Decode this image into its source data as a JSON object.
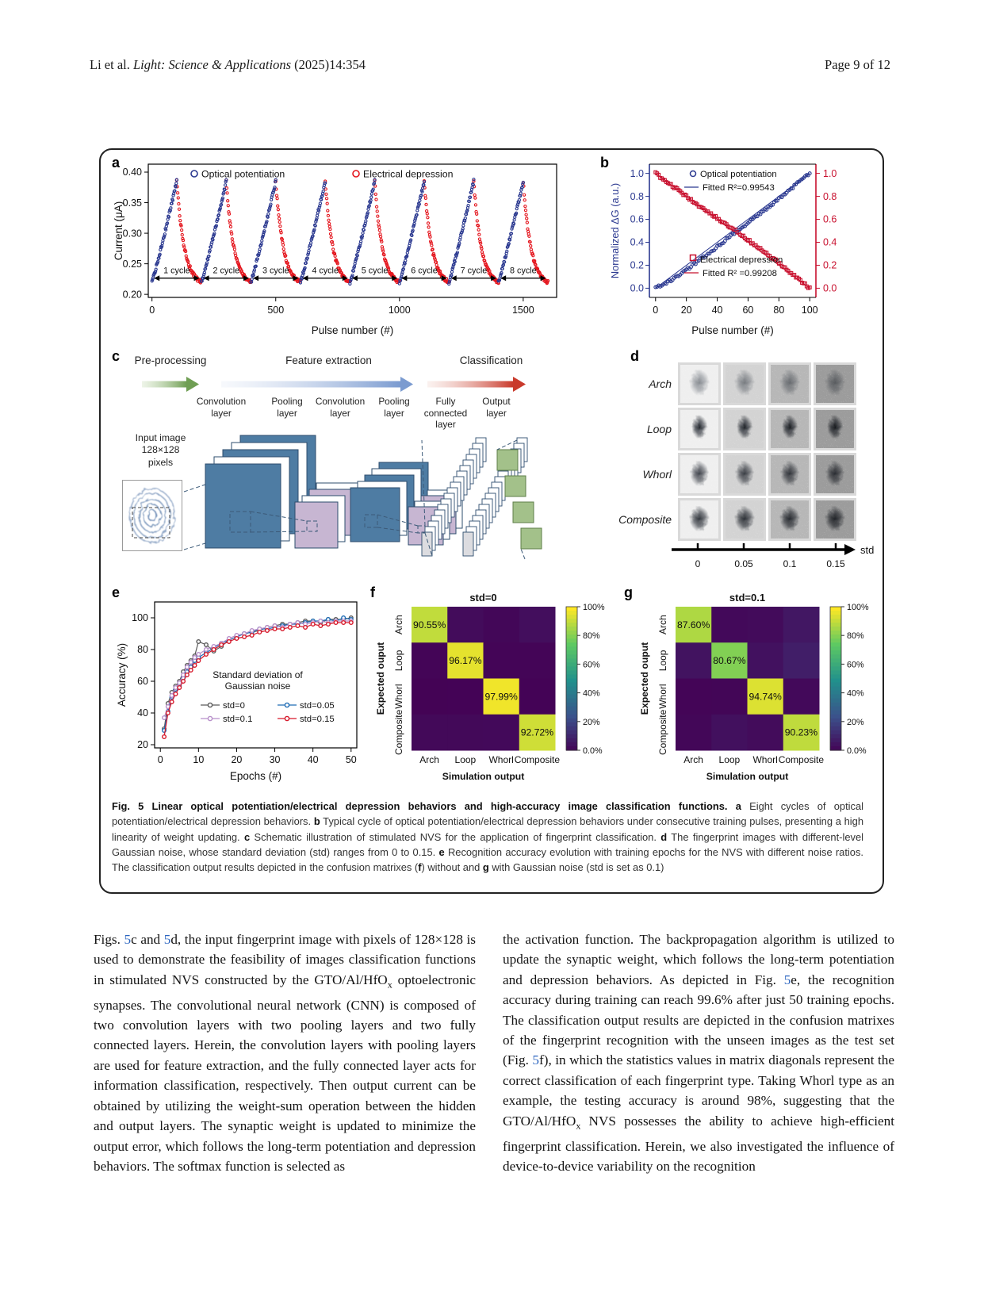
{
  "page": {
    "header": {
      "authors": "Li et al. ",
      "journal": "Light: Science & Applications",
      "citation": " (2025)14:354",
      "page_info": "Page 9 of 12"
    },
    "caption_parts": [
      {
        "t": "Fig. 5 Linear optical potentiation/electrical depression behaviors and high-accuracy image classification functions.",
        "b": 1
      },
      {
        "t": " "
      },
      {
        "t": "a",
        "b": 1
      },
      {
        "t": " Eight cycles of optical potentiation/electrical depression behaviors. "
      },
      {
        "t": "b",
        "b": 1
      },
      {
        "t": " Typical cycle of optical potentiation/electrical depression behaviors under consecutive training pulses, presenting a high linearity of weight updating. "
      },
      {
        "t": "c",
        "b": 1
      },
      {
        "t": " Schematic illustration of stimulated NVS for the application of fingerprint classification. "
      },
      {
        "t": "d",
        "b": 1
      },
      {
        "t": " The fingerprint images with different-level Gaussian noise, whose standard deviation (std) ranges from 0 to 0.15. "
      },
      {
        "t": "e",
        "b": 1
      },
      {
        "t": " Recognition accuracy evolution with training epochs for the NVS with different noise ratios. The classification output results depicted in the confusion matrixes ("
      },
      {
        "t": "f",
        "b": 1
      },
      {
        "t": ") without and "
      },
      {
        "t": "g",
        "b": 1
      },
      {
        "t": " with Gaussian noise (std is set as 0.1)"
      }
    ],
    "body_left_parts": [
      {
        "t": "Figs. "
      },
      {
        "t": "5",
        "l": 1
      },
      {
        "t": "c and "
      },
      {
        "t": "5",
        "l": 1
      },
      {
        "t": "d, the input fingerprint image with pixels of 128×128 is used to demonstrate the feasibility of images classification functions in stimulated NVS constructed by the GTO/Al/HfO"
      },
      {
        "t": "x",
        "s": 1
      },
      {
        "t": " optoelectronic synapses. The convolutional neural network (CNN) is composed of two convolution layers with two pooling layers and two fully connected layers. Herein, the convolution layers with pooling layers are used for feature extraction, and the fully connected layer acts for information classification, respectively. Then output current can be obtained by utilizing the weight-sum operation between the hidden and output layers. The synaptic weight is updated to minimize the output error, which follows the long-term potentiation and depression behaviors. The softmax function is selected as"
      }
    ],
    "body_right_parts": [
      {
        "t": "the activation function. The backpropagation algorithm is utilized to update the synaptic weight, which follows the long-term potentiation and depression behaviors. As depicted in Fig. "
      },
      {
        "t": "5",
        "l": 1
      },
      {
        "t": "e, the recognition accuracy during training can reach 99.6% after just 50 training epochs. The classification output results are depicted in the confusion matrixes of the fingerprint recognition with the unseen images as the test set (Fig. "
      },
      {
        "t": "5",
        "l": 1
      },
      {
        "t": "f), in which the statistics values in matrix diagonals represent the correct classification of each fingerprint type. Taking Whorl type as an example, the testing accuracy is around 98%, suggesting that the GTO/Al/HfO"
      },
      {
        "t": "x",
        "s": 1
      },
      {
        "t": " NVS possesses the ability to achieve high-efficient fingerprint classification. Herein, we also investigated the influence of device-to-device variability on the recognition"
      }
    ]
  },
  "figure": {
    "panel_labels": {
      "a": "a",
      "b": "b",
      "c": "c",
      "d": "d",
      "e": "e",
      "f": "f",
      "g": "g"
    },
    "c": {
      "stages": [
        "Pre-processing",
        "Feature extraction",
        "Classification"
      ],
      "layers": [
        "Convolution\nlayer",
        "Pooling\nlayer",
        "Convolution\nlayer",
        "Pooling\nlayer",
        "Fully\nconnected\nlayer",
        "Output\nlayer"
      ],
      "input_label": "Input image\n128×128\npixels"
    },
    "d": {
      "rows": [
        "Arch",
        "Loop",
        "Whorl",
        "Composite"
      ],
      "std_ticks": [
        "0",
        "0.05",
        "0.1",
        "0.15"
      ],
      "axis_label": "std"
    }
  },
  "chart_data": {
    "a": {
      "type": "scatter",
      "xlabel": "Pulse number (#)",
      "ylabel": "Current (μA)",
      "xticks": [
        0,
        500,
        1000,
        1500
      ],
      "yticks": [
        0.2,
        0.25,
        0.3,
        0.35,
        0.4
      ],
      "xlim": [
        0,
        1620
      ],
      "ylim": [
        0.195,
        0.413
      ],
      "cycles": 8,
      "pulses_per_half_cycle": 100,
      "current_min": 0.22,
      "current_max": 0.385,
      "cycle_labels": [
        "1 cycle",
        "2 cycle",
        "3 cycle",
        "4 cycle",
        "5 cycle",
        "6 cycle",
        "7 cycle",
        "8 cycle"
      ],
      "series": [
        {
          "name": "Optical potentiation",
          "color": "#2b3990",
          "marker": "circle"
        },
        {
          "name": "Electrical depression",
          "color": "#e4161e",
          "marker": "circle"
        }
      ]
    },
    "b": {
      "type": "scatter",
      "xlabel": "Pulse number (#)",
      "ylabel": "Normalized ΔG (a.u.)",
      "xticks": [
        0,
        20,
        40,
        60,
        80,
        100
      ],
      "yticks": [
        0.0,
        0.2,
        0.4,
        0.6,
        0.8,
        1.0
      ],
      "series": [
        {
          "name": "Optical potentiation",
          "fit_label": "Fitted R²=0.99543",
          "color": "#2b3990",
          "marker": "circle",
          "x": [
            0,
            10,
            20,
            30,
            40,
            50,
            60,
            70,
            80,
            90,
            100
          ],
          "y": [
            0.0,
            0.07,
            0.16,
            0.26,
            0.36,
            0.47,
            0.57,
            0.67,
            0.78,
            0.89,
            1.0
          ]
        },
        {
          "name": "Electrical depression",
          "fit_label": "Fitted R² =0.99208",
          "color": "#c8102e",
          "marker": "square",
          "x": [
            0,
            10,
            20,
            30,
            40,
            50,
            60,
            70,
            80,
            90,
            100
          ],
          "y": [
            1.0,
            0.9,
            0.8,
            0.7,
            0.61,
            0.52,
            0.42,
            0.32,
            0.22,
            0.11,
            0.0
          ]
        }
      ]
    },
    "e": {
      "type": "line",
      "xlabel": "Epochs (#)",
      "ylabel": "Accuracy (%)",
      "xticks": [
        0,
        10,
        20,
        30,
        40,
        50
      ],
      "yticks": [
        20,
        40,
        60,
        80,
        100
      ],
      "legend_title_lines": [
        "Standard deviation of",
        "Gaussian noise"
      ],
      "epochs": [
        1,
        2,
        3,
        4,
        5,
        6,
        7,
        8,
        9,
        10,
        12,
        14,
        16,
        18,
        20,
        22,
        24,
        26,
        28,
        30,
        32,
        34,
        36,
        38,
        40,
        42,
        44,
        46,
        48,
        50
      ],
      "series": [
        {
          "name": "std=0",
          "color": "#5a5a5a",
          "values": [
            30,
            46,
            53,
            57,
            60,
            66,
            70,
            73,
            76,
            85,
            83,
            79,
            82,
            86,
            88,
            90,
            91,
            92,
            94,
            95,
            96,
            96,
            97,
            98,
            98,
            97,
            99,
            99,
            99,
            100
          ]
        },
        {
          "name": "std=0.05",
          "color": "#1f6cb4",
          "values": [
            29,
            41,
            50,
            55,
            57,
            62,
            66,
            69,
            73,
            75,
            78,
            81,
            84,
            86,
            88,
            90,
            91,
            93,
            93,
            94,
            95,
            96,
            96,
            97,
            98,
            98,
            99,
            98,
            100,
            99
          ]
        },
        {
          "name": "std=0.1",
          "color": "#b78fc9",
          "values": [
            37,
            44,
            51,
            56,
            59,
            64,
            69,
            72,
            75,
            77,
            80,
            82,
            84,
            87,
            89,
            90,
            92,
            93,
            94,
            95,
            94,
            96,
            97,
            96,
            97,
            98,
            97,
            98,
            98,
            98
          ]
        },
        {
          "name": "std=0.15",
          "color": "#d6182a",
          "values": [
            25,
            40,
            47,
            52,
            56,
            60,
            64,
            67,
            70,
            73,
            77,
            80,
            83,
            85,
            87,
            88,
            89,
            91,
            92,
            93,
            93,
            94,
            95,
            94,
            96,
            95,
            96,
            97,
            97,
            97
          ]
        }
      ]
    },
    "f": {
      "type": "heatmap",
      "title": "std=0",
      "xlabel": "Simulation output",
      "ylabel": "Expected ouput",
      "categories": [
        "Arch",
        "Loop",
        "Whorl",
        "Composite"
      ],
      "matrix": [
        [
          90.55,
          3.4,
          2.0,
          4.1
        ],
        [
          1.2,
          96.17,
          1.3,
          1.3
        ],
        [
          0.6,
          0.7,
          97.99,
          0.7
        ],
        [
          2.4,
          2.4,
          2.5,
          92.72
        ]
      ],
      "diagonal_labels": [
        "90.55%",
        "96.17%",
        "97.99%",
        "92.72%"
      ],
      "colorbar_ticks": [
        "100%",
        "80%",
        "60%",
        "40%",
        "20%",
        "0.0%"
      ],
      "colorbar_values": [
        100,
        80,
        60,
        40,
        20,
        0
      ]
    },
    "g": {
      "type": "heatmap",
      "title": "std=0.1",
      "xlabel": "Simulation output",
      "ylabel": "Expected ouput",
      "categories": [
        "Arch",
        "Loop",
        "Whorl",
        "Composite"
      ],
      "matrix": [
        [
          87.6,
          2.5,
          3.1,
          6.8
        ],
        [
          5.5,
          80.67,
          4.9,
          8.9
        ],
        [
          1.2,
          1.5,
          94.74,
          2.6
        ],
        [
          2.0,
          4.5,
          3.3,
          90.23
        ]
      ],
      "diagonal_labels": [
        "87.60%",
        "80.67%",
        "94.74%",
        "90.23%"
      ],
      "colorbar_ticks": [
        "100%",
        "80%",
        "60%",
        "40%",
        "20%",
        "0.0%"
      ],
      "colorbar_values": [
        100,
        80,
        60,
        40,
        20,
        0
      ]
    }
  }
}
